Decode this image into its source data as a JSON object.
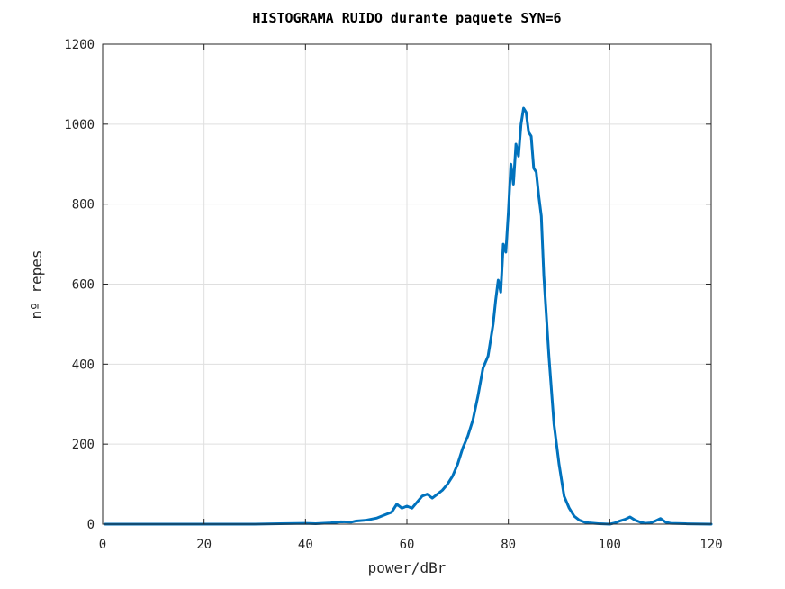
{
  "chart_data": {
    "type": "line",
    "title": "HISTOGRAMA RUIDO durante paquete SYN=6",
    "xlabel": "power/dBr",
    "ylabel": "nº repes",
    "xlim": [
      0,
      120
    ],
    "ylim": [
      0,
      1200
    ],
    "xticks": [
      "0",
      "20",
      "40",
      "60",
      "80",
      "100",
      "120"
    ],
    "yticks": [
      "0",
      "200",
      "400",
      "600",
      "800",
      "1000",
      "1200"
    ],
    "grid": true,
    "series": [
      {
        "color": "#0072bd",
        "x": [
          0.5,
          10,
          20,
          30,
          35,
          40,
          42,
          45,
          47,
          49,
          50,
          52,
          54,
          55,
          56,
          57,
          58,
          59,
          60,
          61,
          62,
          63,
          64,
          65,
          66,
          67,
          68,
          69,
          70,
          71,
          72,
          73,
          74,
          75,
          76,
          77,
          77.5,
          78,
          78.5,
          79,
          79.5,
          80,
          80.5,
          81,
          81.5,
          82,
          82.5,
          83,
          83.5,
          84,
          84.5,
          85,
          85.5,
          86,
          86.5,
          87,
          88,
          89,
          90,
          91,
          92,
          93,
          94,
          95,
          96,
          97,
          98,
          100,
          101,
          102,
          103,
          104,
          105,
          106,
          107,
          108,
          109,
          110,
          111,
          112,
          115,
          120
        ],
        "y": [
          0,
          0,
          0,
          0,
          1,
          2,
          1,
          3,
          6,
          5,
          8,
          10,
          15,
          20,
          25,
          30,
          50,
          40,
          45,
          40,
          55,
          70,
          75,
          65,
          75,
          85,
          100,
          120,
          150,
          190,
          220,
          260,
          320,
          390,
          420,
          500,
          560,
          610,
          580,
          700,
          680,
          780,
          900,
          850,
          950,
          920,
          1000,
          1040,
          1030,
          980,
          970,
          890,
          880,
          820,
          770,
          620,
          420,
          250,
          150,
          70,
          40,
          20,
          10,
          5,
          3,
          2,
          1,
          0,
          3,
          8,
          12,
          18,
          10,
          5,
          2,
          3,
          8,
          14,
          5,
          2,
          1,
          0
        ]
      }
    ]
  }
}
